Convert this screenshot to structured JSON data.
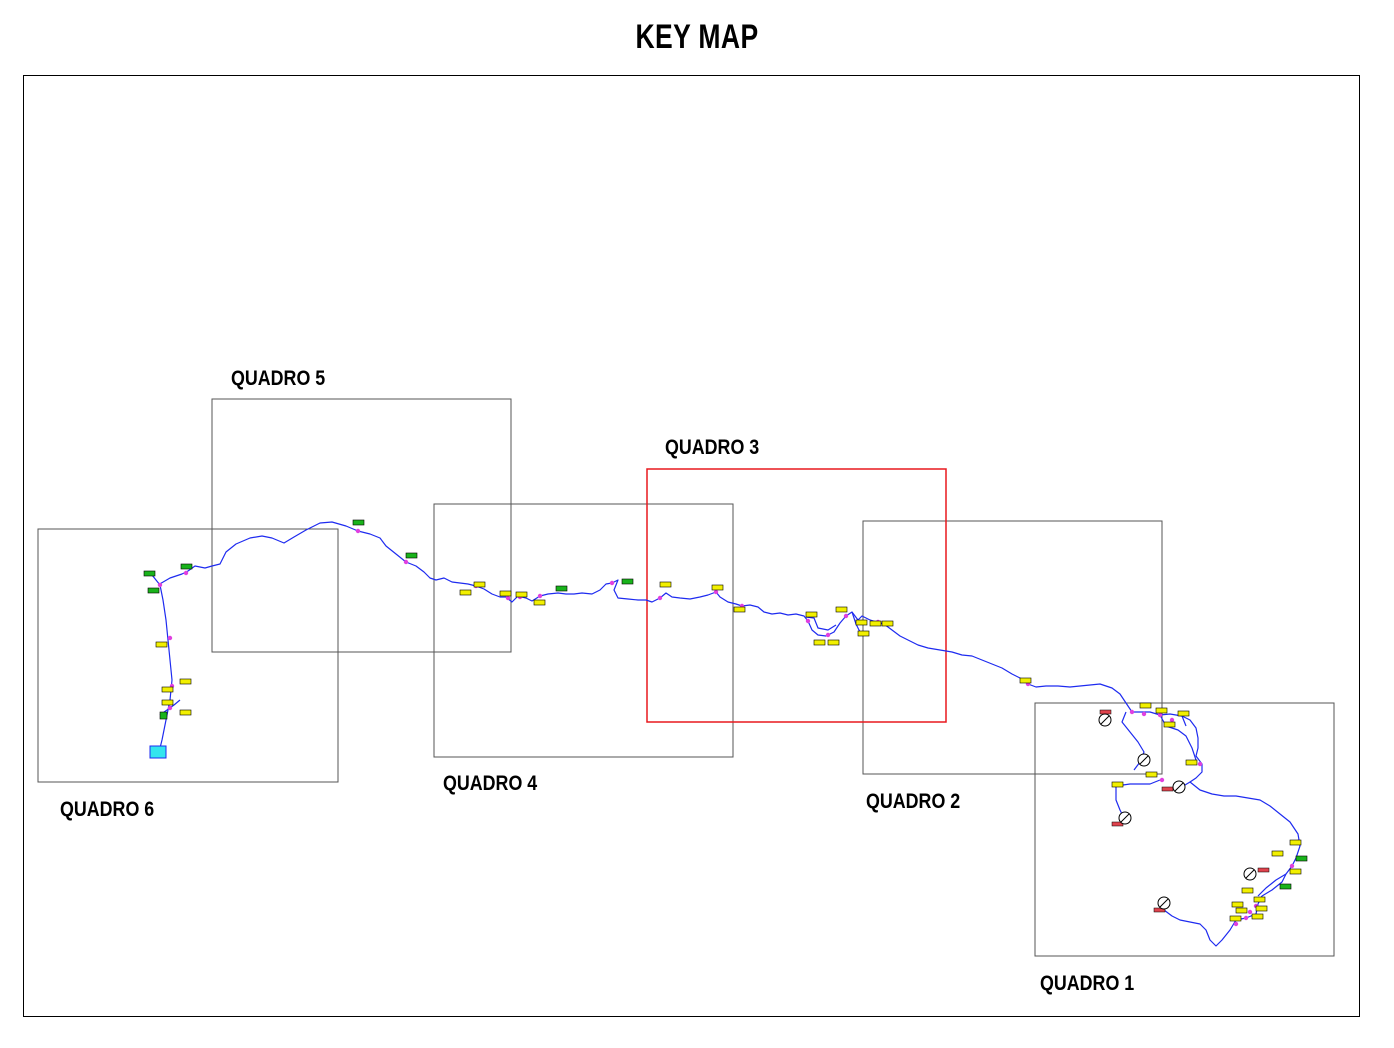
{
  "title": "KEY MAP",
  "colors": {
    "frame": "#000000",
    "quadro_border": "#555555",
    "quadro_selected": "#e8191e",
    "route": "#1e2bf0",
    "node": "#e040e0",
    "tag_yellow": "#f2f000",
    "tag_green": "#19b31b",
    "tag_red": "#e0434d",
    "tank": "#33e5ee"
  },
  "quadros": [
    {
      "id": "q1",
      "label": "QUADRO 1",
      "selected": false
    },
    {
      "id": "q2",
      "label": "QUADRO 2",
      "selected": false
    },
    {
      "id": "q3",
      "label": "QUADRO 3",
      "selected": true
    },
    {
      "id": "q4",
      "label": "QUADRO 4",
      "selected": false
    },
    {
      "id": "q5",
      "label": "QUADRO 5",
      "selected": false
    },
    {
      "id": "q6",
      "label": "QUADRO 6",
      "selected": false
    }
  ]
}
